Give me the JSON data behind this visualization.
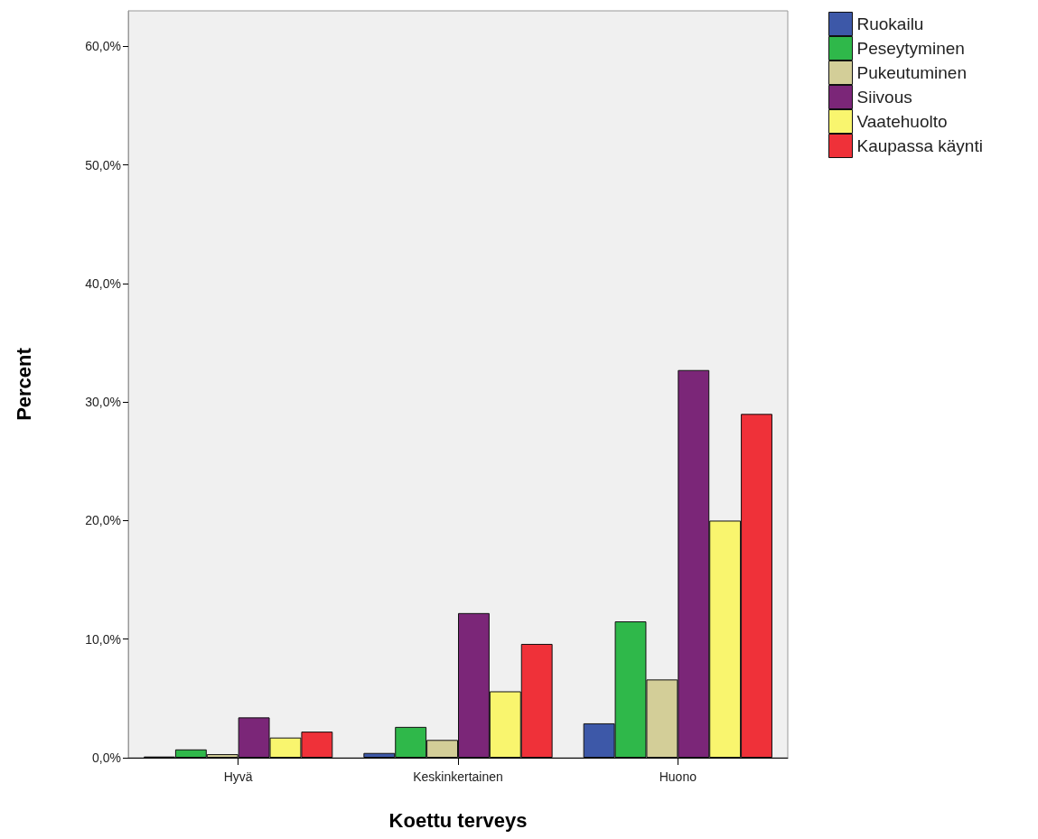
{
  "chart_data": {
    "type": "bar",
    "xlabel": "Koettu terveys",
    "ylabel": "Percent",
    "categories": [
      "Hyvä",
      "Keskinkertainen",
      "Huono"
    ],
    "series": [
      {
        "name": "Ruokailu",
        "color": "#3d58a8",
        "values": [
          0.1,
          0.4,
          2.9
        ]
      },
      {
        "name": "Peseytyminen",
        "color": "#2fb84a",
        "values": [
          0.7,
          2.6,
          11.5
        ]
      },
      {
        "name": "Pukeutuminen",
        "color": "#d3ce98",
        "values": [
          0.3,
          1.5,
          6.6
        ]
      },
      {
        "name": "Siivous",
        "color": "#7b2678",
        "values": [
          3.4,
          12.2,
          32.7
        ]
      },
      {
        "name": "Vaatehuolto",
        "color": "#f9f56e",
        "values": [
          1.7,
          5.6,
          20.0
        ]
      },
      {
        "name": "Kaupassa käynti",
        "color": "#ef3139",
        "values": [
          2.2,
          9.6,
          29.0
        ]
      }
    ],
    "ylim": [
      0,
      63
    ],
    "yticks": [
      {
        "value": 0,
        "label": "0,0%"
      },
      {
        "value": 10,
        "label": "10,0%"
      },
      {
        "value": 20,
        "label": "20,0%"
      },
      {
        "value": 30,
        "label": "30,0%"
      },
      {
        "value": 40,
        "label": "40,0%"
      },
      {
        "value": 50,
        "label": "50,0%"
      },
      {
        "value": 60,
        "label": "60,0%"
      }
    ],
    "grid": false,
    "legend": "top right"
  }
}
